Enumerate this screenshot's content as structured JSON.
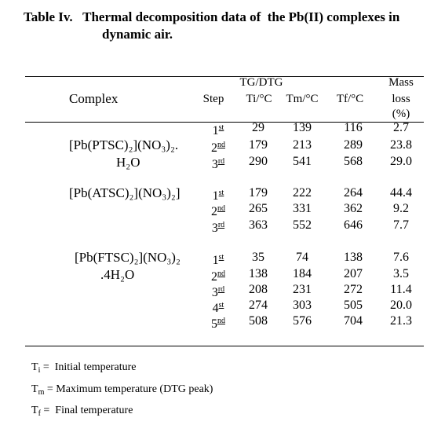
{
  "title": [
    "Table Iv.   Thermal decomposition data of  the Pb(II) complexes in",
    "dynamic air."
  ],
  "header": {
    "group": "TG/DTG",
    "complex": "Complex",
    "step": "Step",
    "ti": "Ti/°C",
    "tm": "Tm/°C",
    "tf": "Tf/°C",
    "mass": [
      "Mass",
      "loss",
      "(%)"
    ]
  },
  "groups": [
    {
      "complex": [
        "[Pb(PTSC)₂](NO₃)₂.",
        "H₂O"
      ],
      "rows": [
        {
          "step": [
            "1",
            "st"
          ],
          "ti": 29,
          "tm": 139,
          "tf": 116,
          "mass": "2.7"
        },
        {
          "step": [
            "2",
            "nd"
          ],
          "ti": 179,
          "tm": 213,
          "tf": 289,
          "mass": "23.8"
        },
        {
          "step": [
            "3",
            "rd"
          ],
          "ti": 290,
          "tm": 541,
          "tf": 568,
          "mass": "29.0"
        }
      ]
    },
    {
      "complex": [
        "[Pb(ATSC)₂](NO₃)₂]"
      ],
      "rows": [
        {
          "step": [
            "1",
            "st"
          ],
          "ti": 179,
          "tm": 222,
          "tf": 264,
          "mass": "44.4"
        },
        {
          "step": [
            "2",
            "nd"
          ],
          "ti": 265,
          "tm": 331,
          "tf": 362,
          "mass": "9.2"
        },
        {
          "step": [
            "3",
            "rd"
          ],
          "ti": 363,
          "tm": 552,
          "tf": 646,
          "mass": "7.7"
        }
      ]
    },
    {
      "complex": [
        "[Pb(FTSC)₂](NO₃)₂",
        ".4H₂O"
      ],
      "rows": [
        {
          "step": [
            "1",
            "st"
          ],
          "ti": 35,
          "tm": 74,
          "tf": 138,
          "mass": "7.6"
        },
        {
          "step": [
            "2",
            "nd"
          ],
          "ti": 138,
          "tm": 184,
          "tf": 207,
          "mass": "3.5"
        },
        {
          "step": [
            "3",
            "rd"
          ],
          "ti": 208,
          "tm": 231,
          "tf": 272,
          "mass": "11.4"
        },
        {
          "step": [
            "4",
            "st"
          ],
          "ti": 274,
          "tm": 303,
          "tf": 505,
          "mass": "20.0"
        },
        {
          "step": [
            "5",
            "nd"
          ],
          "ti": 508,
          "tm": 576,
          "tf": 704,
          "mass": "21.3"
        }
      ]
    }
  ],
  "footnotes": [
    {
      "sym": "T",
      "sub": "i",
      "text": " =  Initial temperature"
    },
    {
      "sym": "T",
      "sub": "m",
      "text": " = Maximum temperature (DTG peak)"
    },
    {
      "sym": "T",
      "sub": "f",
      "text": " =  Final temperature"
    }
  ]
}
